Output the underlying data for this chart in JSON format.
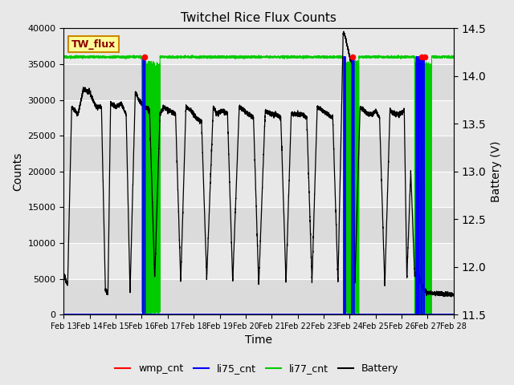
{
  "title": "Twitchel Rice Flux Counts",
  "xlabel": "Time",
  "ylabel_left": "Counts",
  "ylabel_right": "Battery (V)",
  "xlim": [
    0,
    15
  ],
  "ylim_left": [
    0,
    40000
  ],
  "ylim_right": [
    11.5,
    14.5
  ],
  "xtick_labels": [
    "Feb 13",
    "Feb 14",
    "Feb 15",
    "Feb 16",
    "Feb 17",
    "Feb 18",
    "Feb 19",
    "Feb 20",
    "Feb 21",
    "Feb 22",
    "Feb 23",
    "Feb 24",
    "Feb 25",
    "Feb 26",
    "Feb 27",
    "Feb 28"
  ],
  "xtick_positions": [
    0,
    1,
    2,
    3,
    4,
    5,
    6,
    7,
    8,
    9,
    10,
    11,
    12,
    13,
    14,
    15
  ],
  "ytick_left": [
    0,
    5000,
    10000,
    15000,
    20000,
    25000,
    30000,
    35000,
    40000
  ],
  "ytick_right": [
    11.5,
    12.0,
    12.5,
    13.0,
    13.5,
    14.0,
    14.5
  ],
  "background_color": "#e8e8e8",
  "grid_color": "white",
  "annotation_text": "TW_flux",
  "annotation_color": "#8b0000",
  "annotation_bg": "#ffff99",
  "annotation_border": "#cc8800",
  "li77_level": 36000,
  "wmp_cnt_color": "red",
  "li75_cnt_color": "blue",
  "li77_cnt_color": "#00cc00",
  "battery_color": "black",
  "battery_cycles": [
    [
      0.0,
      5500
    ],
    [
      0.15,
      4200
    ],
    [
      0.3,
      29000
    ],
    [
      0.55,
      28000
    ],
    [
      0.75,
      31500
    ],
    [
      1.0,
      31000
    ],
    [
      1.25,
      29000
    ],
    [
      1.45,
      29000
    ],
    [
      1.6,
      3500
    ],
    [
      1.7,
      3000
    ],
    [
      1.8,
      29500
    ],
    [
      2.0,
      29000
    ],
    [
      2.2,
      29500
    ],
    [
      2.4,
      28000
    ],
    [
      2.55,
      3000
    ],
    [
      2.75,
      31000
    ],
    [
      2.9,
      30000
    ],
    [
      3.1,
      29000
    ],
    [
      3.3,
      28500
    ],
    [
      3.5,
      5000
    ],
    [
      3.7,
      28000
    ],
    [
      3.85,
      29000
    ],
    [
      4.05,
      28500
    ],
    [
      4.3,
      28000
    ],
    [
      4.5,
      4500
    ],
    [
      4.7,
      29000
    ],
    [
      4.9,
      28500
    ],
    [
      5.1,
      27500
    ],
    [
      5.3,
      27000
    ],
    [
      5.5,
      5000
    ],
    [
      5.75,
      29000
    ],
    [
      5.9,
      28000
    ],
    [
      6.1,
      28500
    ],
    [
      6.3,
      28000
    ],
    [
      6.5,
      4500
    ],
    [
      6.75,
      29000
    ],
    [
      6.95,
      28500
    ],
    [
      7.1,
      28000
    ],
    [
      7.3,
      27500
    ],
    [
      7.5,
      4000
    ],
    [
      7.75,
      28500
    ],
    [
      7.95,
      28000
    ],
    [
      8.15,
      28000
    ],
    [
      8.35,
      27500
    ],
    [
      8.55,
      4500
    ],
    [
      8.75,
      28000
    ],
    [
      8.95,
      28000
    ],
    [
      9.15,
      28000
    ],
    [
      9.35,
      27500
    ],
    [
      9.55,
      4500
    ],
    [
      9.75,
      29000
    ],
    [
      9.95,
      28500
    ],
    [
      10.15,
      28000
    ],
    [
      10.35,
      27500
    ],
    [
      10.55,
      4500
    ],
    [
      10.75,
      39500
    ],
    [
      10.85,
      38500
    ],
    [
      11.0,
      36000
    ],
    [
      11.1,
      35000
    ],
    [
      11.2,
      4500
    ],
    [
      11.4,
      29000
    ],
    [
      11.55,
      28500
    ],
    [
      11.7,
      28000
    ],
    [
      11.85,
      28000
    ],
    [
      12.0,
      28500
    ],
    [
      12.15,
      27500
    ],
    [
      12.35,
      4000
    ],
    [
      12.55,
      28500
    ],
    [
      12.75,
      28000
    ],
    [
      12.95,
      28000
    ],
    [
      13.1,
      28500
    ],
    [
      13.2,
      5000
    ],
    [
      13.35,
      20000
    ],
    [
      13.5,
      5500
    ],
    [
      13.65,
      5500
    ],
    [
      13.7,
      5000
    ],
    [
      13.75,
      4500
    ],
    [
      13.85,
      3500
    ],
    [
      14.0,
      3000
    ],
    [
      15.0,
      2800
    ]
  ],
  "li77_dip_ranges": [
    [
      3.0,
      3.7
    ],
    [
      10.75,
      11.35
    ],
    [
      13.5,
      14.15
    ]
  ],
  "li75_spikes": [
    [
      3.05,
      3.12
    ],
    [
      10.78,
      10.83
    ],
    [
      11.09,
      11.16
    ],
    [
      13.56,
      13.62
    ],
    [
      13.67,
      13.74
    ],
    [
      13.79,
      13.86
    ]
  ],
  "wmp_spikes": [
    [
      3.08,
      3.11
    ],
    [
      11.1,
      11.13
    ],
    [
      13.75,
      13.78
    ],
    [
      13.87,
      13.9
    ]
  ]
}
